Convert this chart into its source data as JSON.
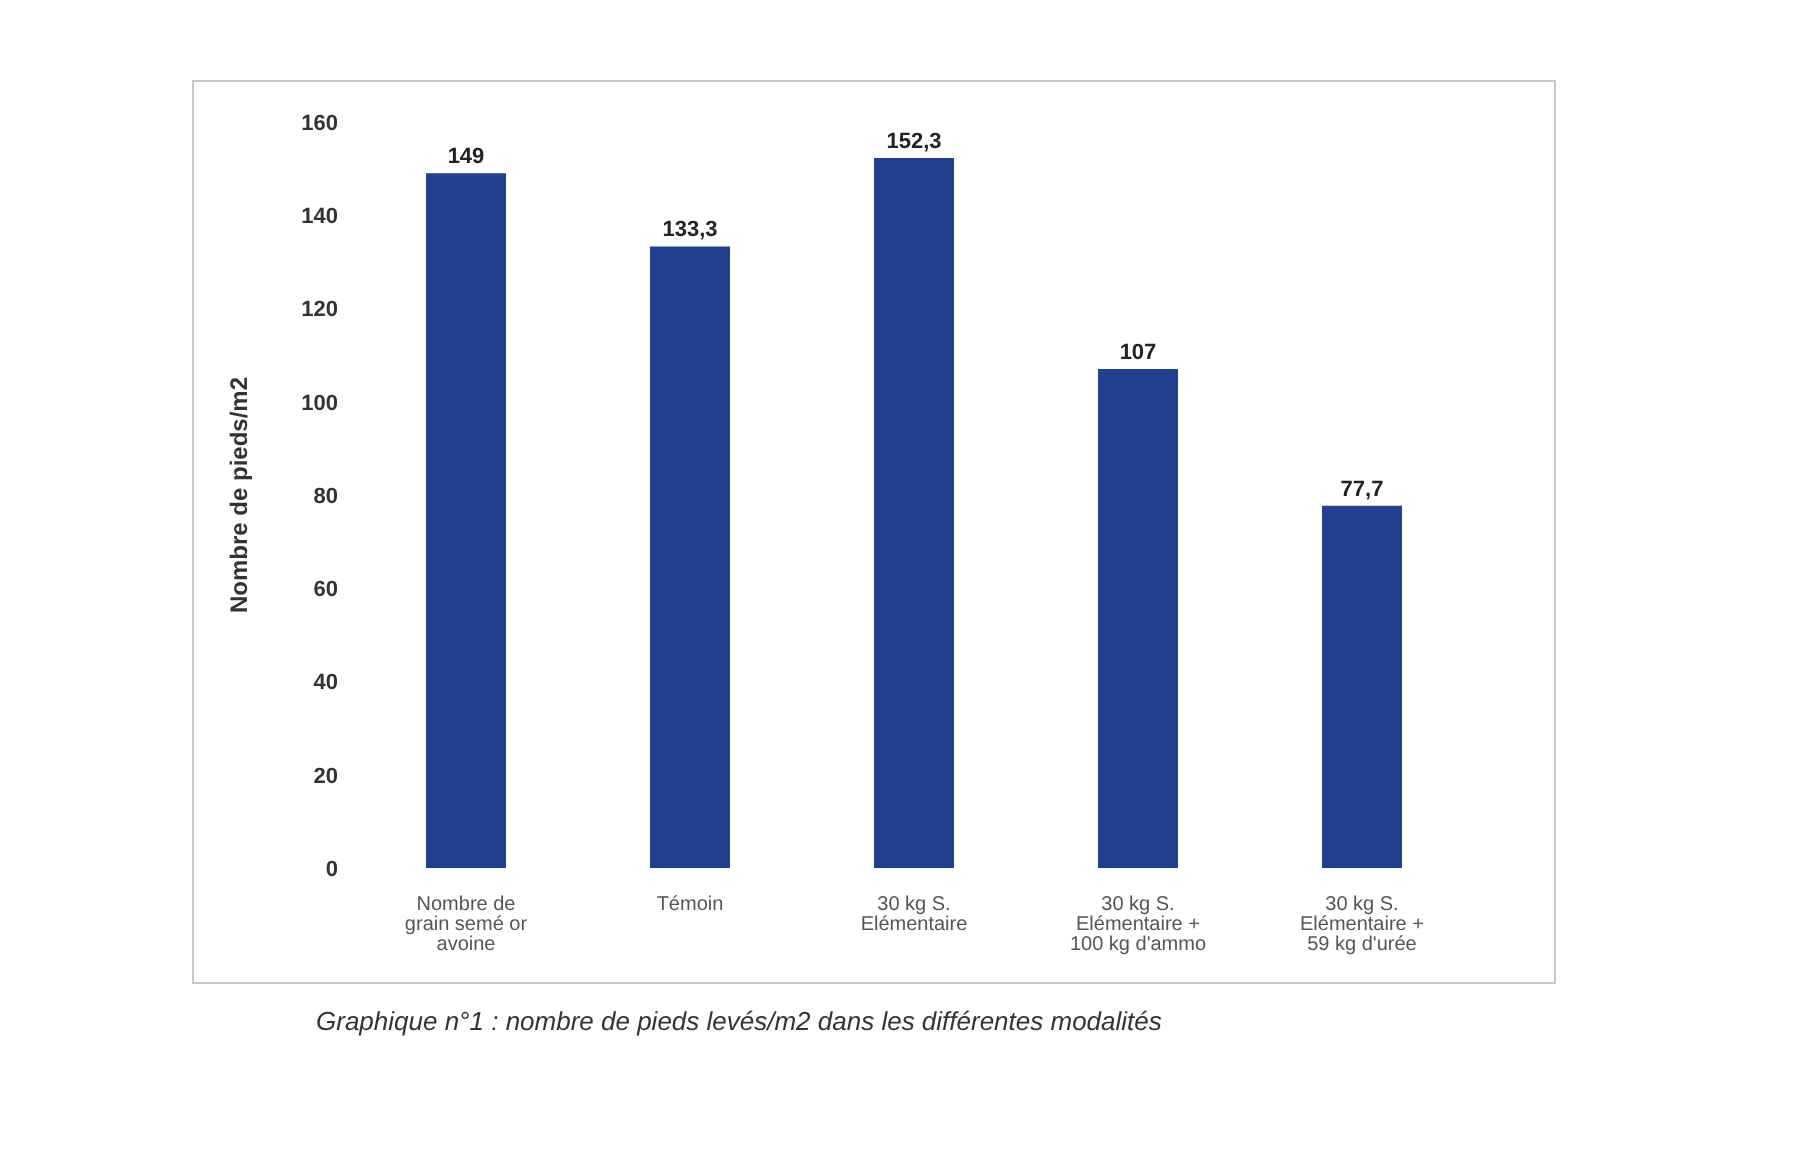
{
  "chart_data": {
    "type": "bar",
    "ylabel": "Nombre de pieds/m2",
    "annotations": [
      "Graphique n°1 : nombre de pieds levés/m2 dans les différentes modalités"
    ],
    "categories": [
      "Nombre de grain semé or avoine",
      "Témoin",
      "30 kg S. Elémentaire",
      "30 kg S. Elémentaire + 100 kg d'ammo",
      "30 kg S. Elémentaire + 59 kg d'urée"
    ],
    "values": [
      149,
      133.3,
      152.3,
      107,
      77.7
    ],
    "value_labels": [
      "149",
      "133,3",
      "152,3",
      "107",
      "77,7"
    ],
    "color": "#21408e",
    "ylim": [
      0,
      160
    ],
    "yticks": [
      0,
      20,
      40,
      60,
      80,
      100,
      120,
      140,
      160
    ],
    "legend": false,
    "grid": false
  }
}
